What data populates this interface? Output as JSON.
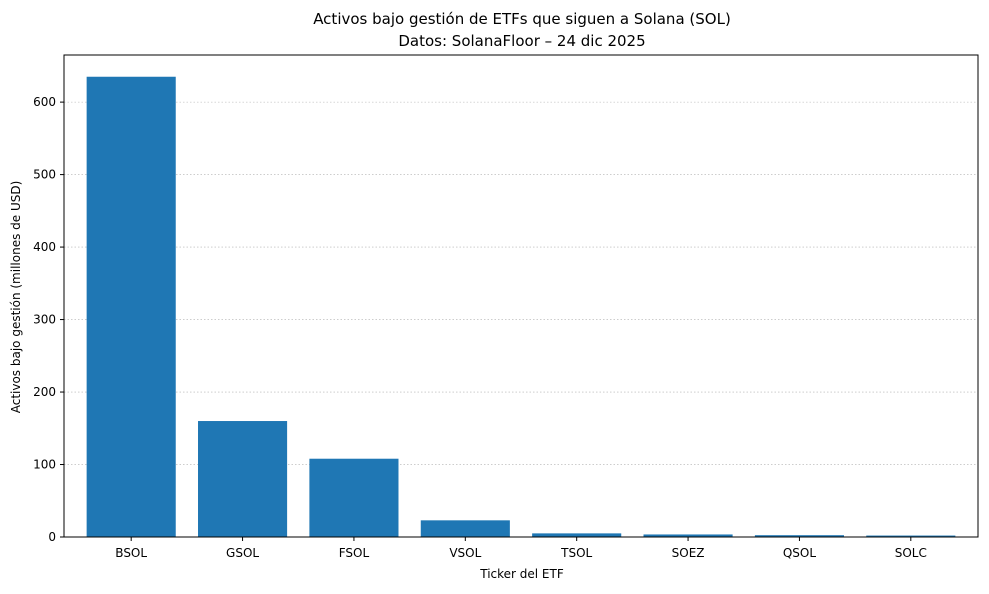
{
  "chart_data": {
    "type": "bar",
    "title": "Activos bajo gestión de ETFs que siguen a Solana (SOL)",
    "subtitle": "Datos: SolanaFloor – 24 dic 2025",
    "xlabel": "Ticker del ETF",
    "ylabel": "Activos bajo gestión (millones de USD)",
    "categories": [
      "BSOL",
      "GSOL",
      "FSOL",
      "VSOL",
      "TSOL",
      "SOEZ",
      "QSOL",
      "SOLC"
    ],
    "values": [
      635,
      160,
      108,
      23,
      5,
      3.5,
      2.5,
      2
    ],
    "ylim": [
      0,
      665
    ],
    "yticks": [
      0,
      100,
      200,
      300,
      400,
      500,
      600
    ],
    "grid": "y",
    "bar_color": "#1f77b4"
  }
}
